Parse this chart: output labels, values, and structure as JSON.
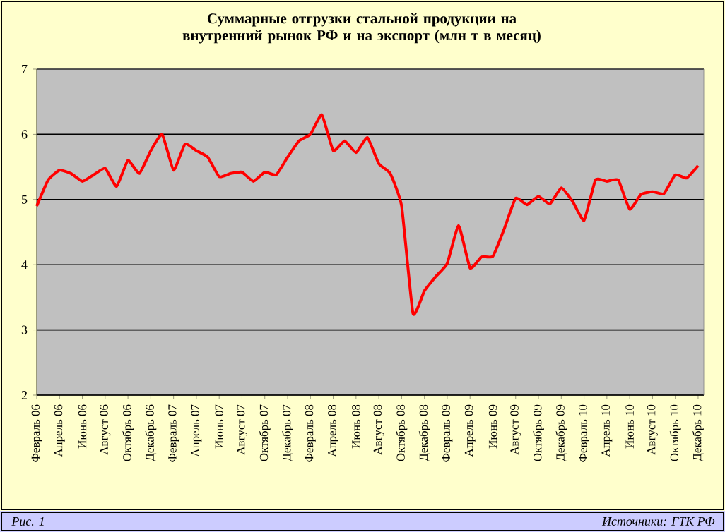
{
  "chart_data": {
    "type": "line",
    "title": "Суммарные отгрузки стальной продукции на внутренний рынок РФ и на экспорт (млн т в месяц)",
    "annotations": [
      "Рис. 1",
      "Источники: ГТК РФ"
    ],
    "categories": [
      "Февраль 06",
      null,
      "Апрель 06",
      null,
      "Июнь 06",
      null,
      "Август 06",
      null,
      "Октябрь 06",
      null,
      "Декабрь 06",
      null,
      "Февраль 07",
      null,
      "Апрель 07",
      null,
      "Июнь 07",
      null,
      "Август 07",
      null,
      "Октябрь 07",
      null,
      "Декабрь 07",
      null,
      "Февраль 08",
      null,
      "Апрель 08",
      null,
      "Июнь 08",
      null,
      "Август 08",
      null,
      "Октябрь 08",
      null,
      "Декабрь 08",
      null,
      "Февраль 09",
      null,
      "Апрель 09",
      null,
      "Июнь 09",
      null,
      "Август 09",
      null,
      "Октябрь 09",
      null,
      "Декабрь 09",
      null,
      "Февраль 10",
      null,
      "Апрель 10",
      null,
      "Июнь 10",
      null,
      "Август 10",
      null,
      "Октябрь 10",
      null,
      "Декабрь 10"
    ],
    "series": [
      {
        "color": "#ff0000",
        "values": [
          4.9,
          5.3,
          5.45,
          5.4,
          5.28,
          5.38,
          5.48,
          5.2,
          5.6,
          5.4,
          5.75,
          6.0,
          5.45,
          5.85,
          5.75,
          5.65,
          5.35,
          5.4,
          5.42,
          5.28,
          5.42,
          5.38,
          5.65,
          5.9,
          6.0,
          6.3,
          5.75,
          5.9,
          5.72,
          5.95,
          5.55,
          5.4,
          4.9,
          3.25,
          3.6,
          3.82,
          4.02,
          4.6,
          3.95,
          4.12,
          4.13,
          4.55,
          5.02,
          4.92,
          5.05,
          4.93,
          5.18,
          4.97,
          4.68,
          5.3,
          5.28,
          5.3,
          4.85,
          5.08,
          5.12,
          5.09,
          5.38,
          5.33,
          5.52
        ]
      }
    ],
    "ylim": [
      2,
      7
    ],
    "yticks": [
      2,
      3,
      4,
      5,
      6,
      7
    ],
    "grid": "y",
    "marker": "none",
    "line_style": "solid"
  }
}
